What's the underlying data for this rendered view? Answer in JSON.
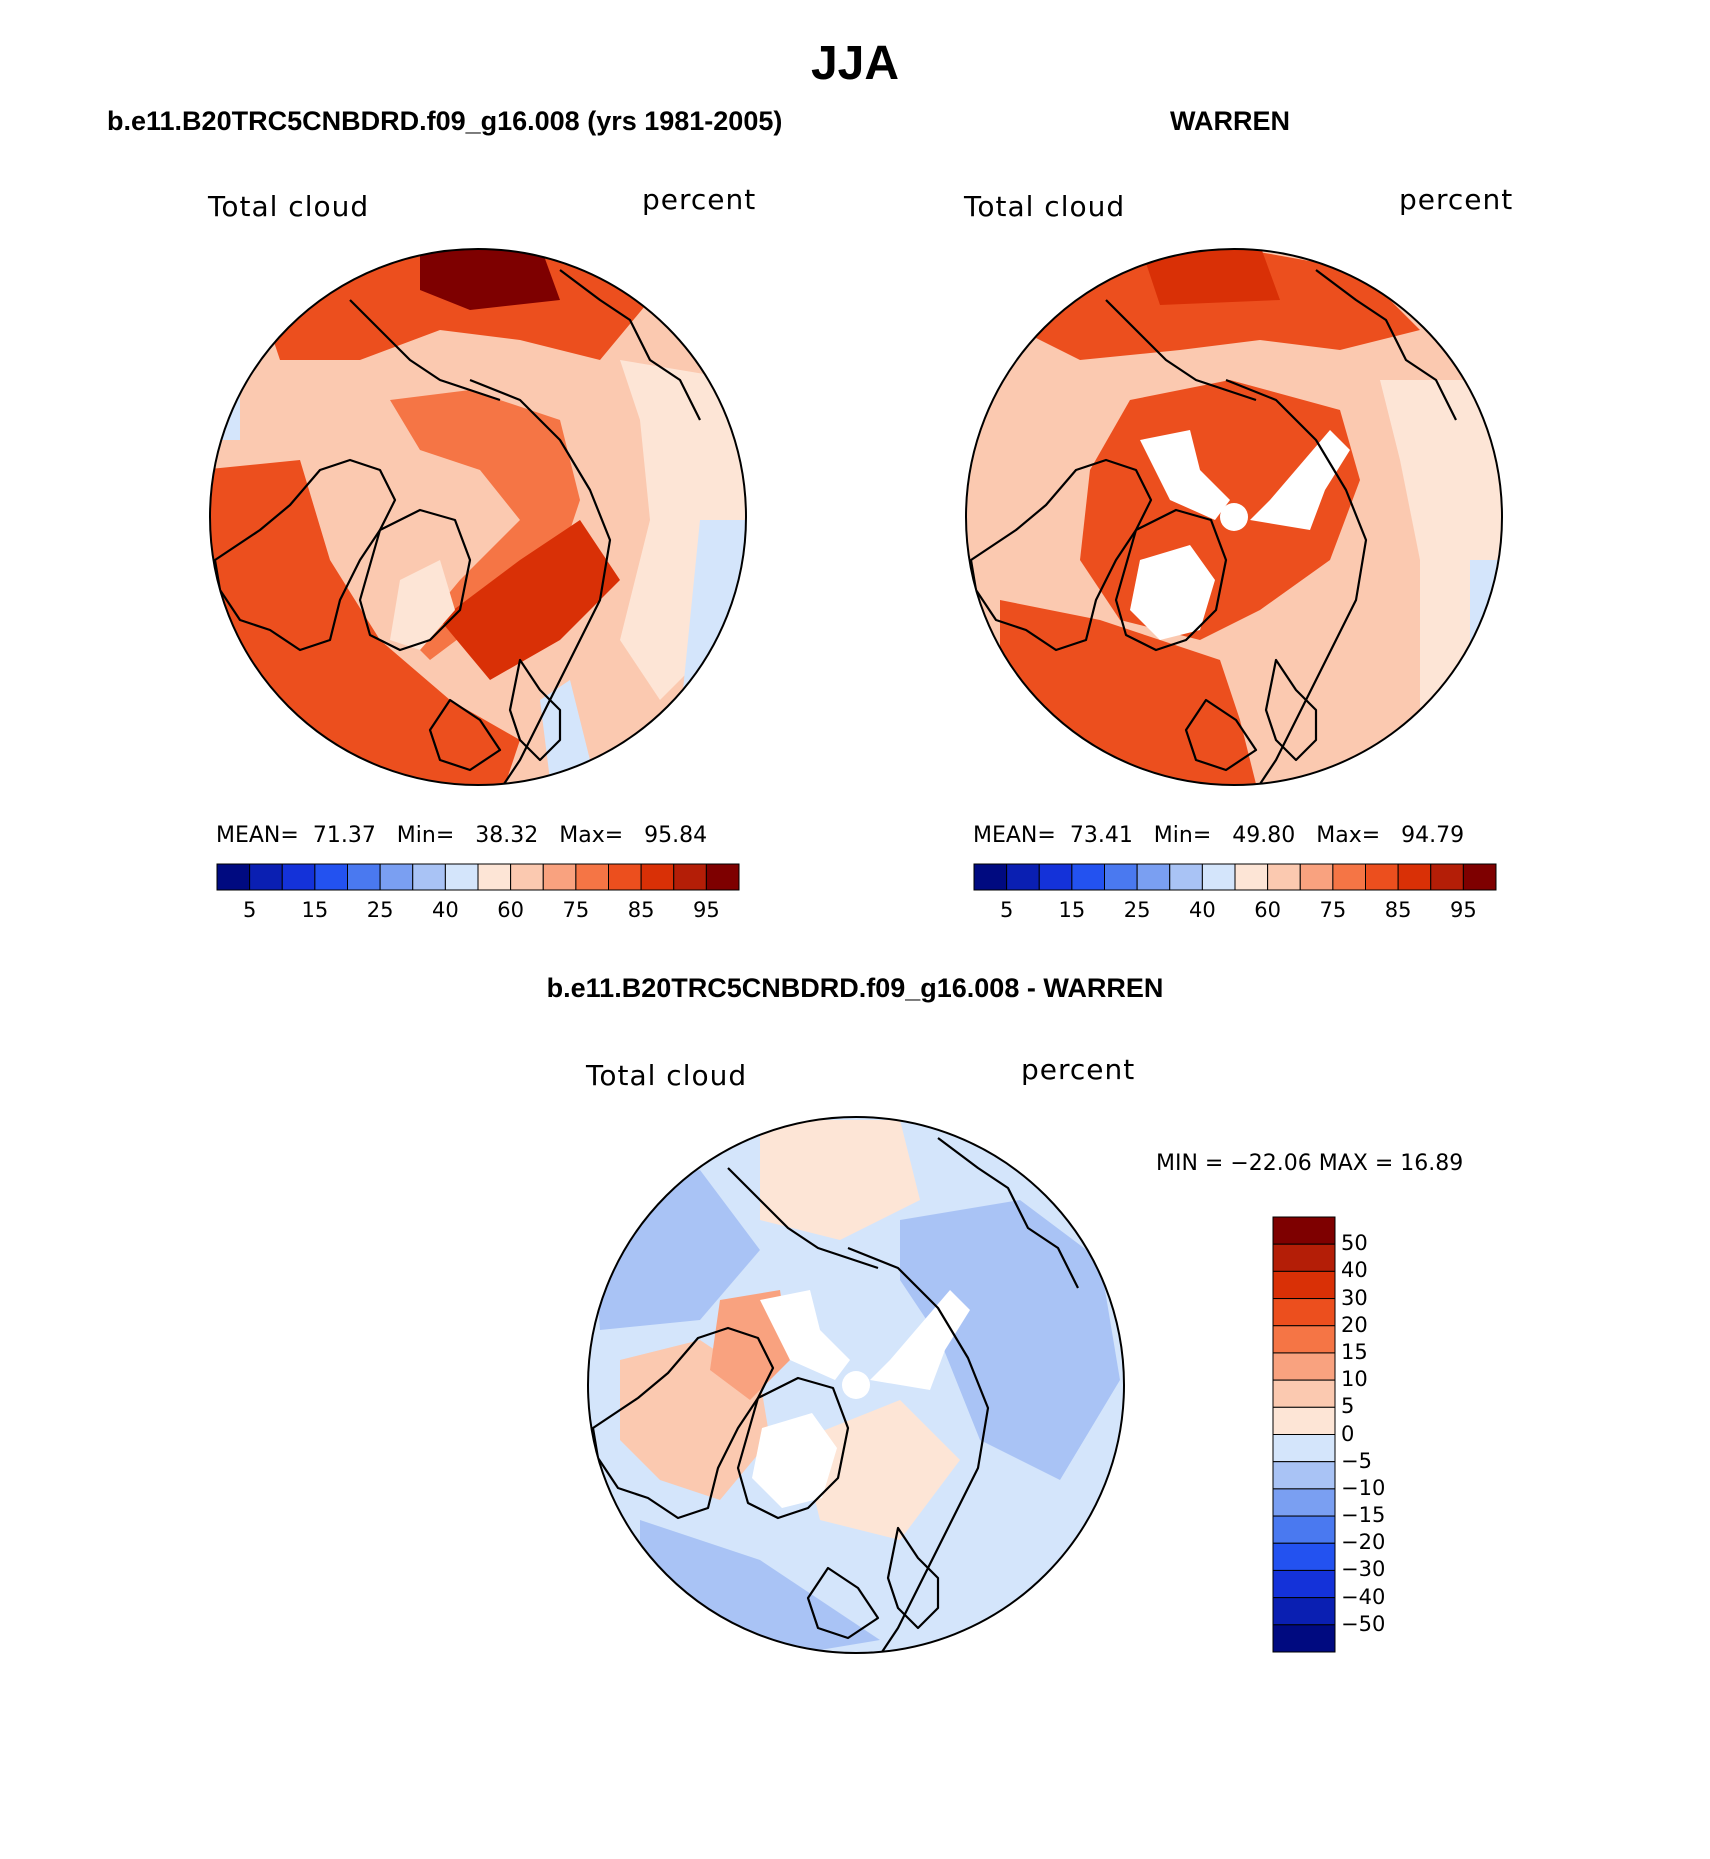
{
  "figure": {
    "title": "JJA",
    "season": "June-July-August"
  },
  "panel_left": {
    "heading": "b.e11.B20TRC5CNBDRD.f09_g16.008 (yrs 1981-2005)",
    "left_label": "Total cloud",
    "right_label": "percent",
    "stats": {
      "mean_label": "MEAN=",
      "mean": "71.37",
      "min_label": "Min=",
      "min": "38.32",
      "max_label": "Max=",
      "max": "95.84"
    }
  },
  "panel_right": {
    "heading": "WARREN",
    "left_label": "Total cloud",
    "right_label": "percent",
    "stats": {
      "mean_label": "MEAN=",
      "mean": "73.41",
      "min_label": "Min=",
      "min": "49.80",
      "max_label": "Max=",
      "max": "94.79"
    }
  },
  "panel_diff": {
    "heading": "b.e11.B20TRC5CNBDRD.f09_g16.008 - WARREN",
    "left_label": "Total cloud",
    "right_label": "percent",
    "stats_text": "MIN = −22.06 MAX =   16.89"
  },
  "colorbar_abs": {
    "colors": [
      "#000a80",
      "#0a1fb2",
      "#1432d9",
      "#2352f0",
      "#4a79f0",
      "#7a9ff2",
      "#a9c3f5",
      "#d4e5fb",
      "#fde5d6",
      "#fbc9b0",
      "#f9a27f",
      "#f57545",
      "#ec4f1e",
      "#d93006",
      "#b41e07",
      "#7e0000"
    ],
    "tick_labels": [
      "5",
      "15",
      "25",
      "40",
      "60",
      "75",
      "85",
      "95"
    ]
  },
  "colorbar_diff": {
    "colors": [
      "#000a80",
      "#0a1fb2",
      "#1432d9",
      "#2352f0",
      "#4a79f0",
      "#7a9ff2",
      "#a9c3f5",
      "#d4e5fb",
      "#fde5d6",
      "#fbc9b0",
      "#f9a27f",
      "#f57545",
      "#ec4f1e",
      "#d93006",
      "#b41e07",
      "#7e0000"
    ],
    "tick_labels": [
      "50",
      "40",
      "30",
      "20",
      "15",
      "10",
      "5",
      "0",
      "−5",
      "−10",
      "−15",
      "−20",
      "−30",
      "−40",
      "−50"
    ]
  }
}
